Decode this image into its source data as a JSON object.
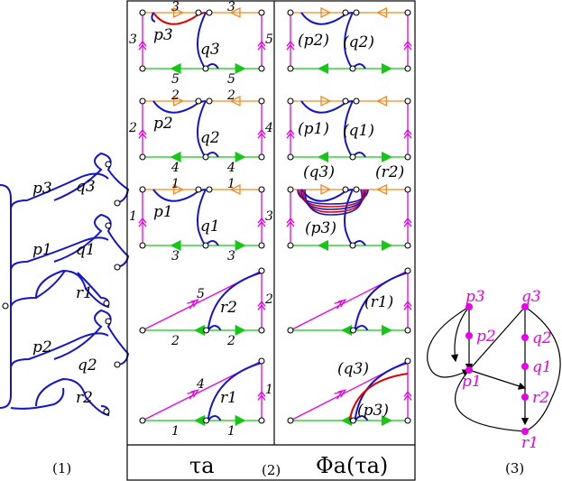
{
  "colors": {
    "curve": "#1515c8",
    "magenta": "#e800e8",
    "orange": "#f08a24",
    "green": "#15c815",
    "red": "#e00000"
  },
  "panel1": {
    "caption": "(1)",
    "labels": [
      "p3",
      "q3",
      "p1",
      "q1",
      "r1",
      "p2",
      "q2",
      "r2"
    ]
  },
  "panel2": {
    "caption": "(2)",
    "left_heading": "τa",
    "right_heading": "Φa(τa)",
    "left": [
      {
        "name": "p3",
        "numbers": [
          "3",
          "3",
          "3",
          "5",
          "5",
          "5"
        ],
        "labels": [
          "p3",
          "q3"
        ]
      },
      {
        "name": "p2",
        "numbers": [
          "2",
          "2",
          "2",
          "4",
          "4",
          "4"
        ],
        "labels": [
          "p2",
          "q2"
        ]
      },
      {
        "name": "p1",
        "numbers": [
          "1",
          "1",
          "1",
          "3",
          "3",
          "3"
        ],
        "labels": [
          "p1",
          "q1"
        ]
      },
      {
        "name": "r2",
        "numbers": [
          "5",
          "2",
          "2",
          "2"
        ],
        "labels": [
          "r2"
        ]
      },
      {
        "name": "r1",
        "numbers": [
          "4",
          "1",
          "1",
          "1"
        ],
        "labels": [
          "r1"
        ]
      }
    ],
    "right": [
      {
        "labels": [
          "(p2)",
          "(q2)"
        ]
      },
      {
        "labels": [
          "(p1)",
          "(q1)"
        ]
      },
      {
        "labels": [
          "(q3)",
          "(r2)",
          "(p3)"
        ]
      },
      {
        "labels": [
          "(r1)"
        ]
      },
      {
        "labels": [
          "(q3)",
          "(p3)"
        ]
      }
    ]
  },
  "panel3": {
    "caption": "(3)",
    "nodes": [
      "p3",
      "p2",
      "p1",
      "q3",
      "q2",
      "q1",
      "r2",
      "r1"
    ]
  }
}
